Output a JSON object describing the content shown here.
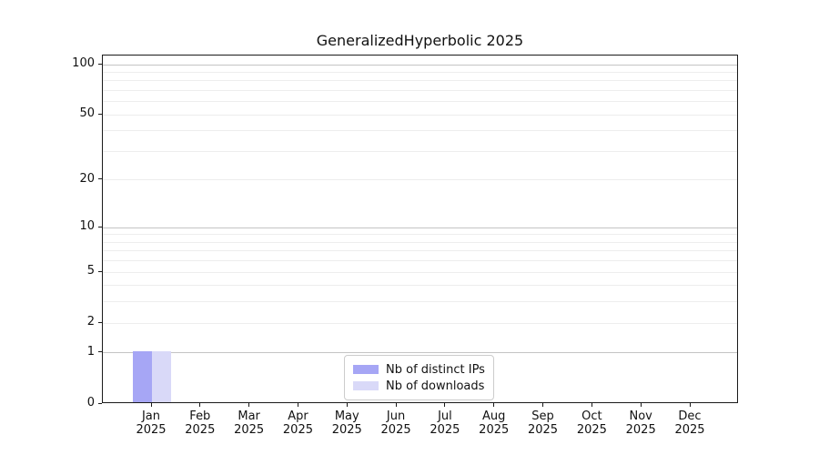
{
  "chart_data": {
    "type": "bar",
    "title": "GeneralizedHyperbolic 2025",
    "categories": [
      "Jan",
      "Feb",
      "Mar",
      "Apr",
      "May",
      "Jun",
      "Jul",
      "Aug",
      "Sep",
      "Oct",
      "Nov",
      "Dec"
    ],
    "category_year_line": "2025",
    "series": [
      {
        "name": "Nb of distinct IPs",
        "color": "#a6a6f5",
        "values": [
          1,
          0,
          0,
          0,
          0,
          0,
          0,
          0,
          0,
          0,
          0,
          0
        ]
      },
      {
        "name": "Nb of downloads",
        "color": "#d9d9f8",
        "values": [
          1,
          0,
          0,
          0,
          0,
          0,
          0,
          0,
          0,
          0,
          0,
          0
        ]
      }
    ],
    "y_axis": {
      "scale": "log1p",
      "tick_labels": [
        0,
        1,
        2,
        5,
        10,
        20,
        50,
        100
      ],
      "emphasized_gridlines": [
        1,
        10,
        100
      ],
      "minor_gridlines": [
        2,
        3,
        4,
        5,
        6,
        7,
        8,
        9,
        20,
        30,
        40,
        50,
        60,
        70,
        80,
        90
      ],
      "top_value": 113
    },
    "legend": {
      "position": "lower center"
    },
    "grid": "horizontal",
    "xlabel": "",
    "ylabel": ""
  },
  "colors": {
    "spine": "#1a1a1a",
    "grid_major": "#c4c4c4",
    "grid_minor": "#ededed",
    "text": "#111111",
    "legend_border": "#cccccc"
  }
}
